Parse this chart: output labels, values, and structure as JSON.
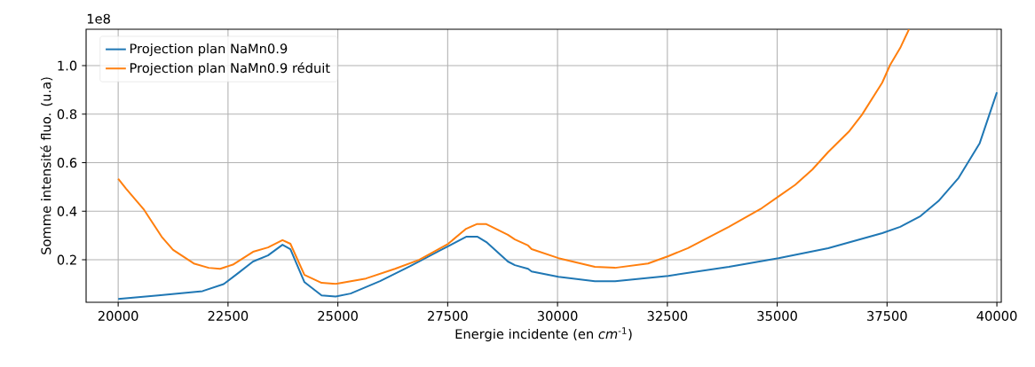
{
  "chart_data": {
    "type": "line",
    "xlabel": "Energie incidente (en *cm*$^{-1}$)",
    "ylabel": "Somme intensité fluo. (u.a)",
    "annotations": [
      "1e8"
    ],
    "xlim": [
      19270,
      40100
    ],
    "ylim": [
      0.025,
      1.15
    ],
    "xticks": [
      20000,
      22500,
      25000,
      27500,
      30000,
      32500,
      35000,
      37500,
      40000
    ],
    "yticks": [
      0.2,
      0.4,
      0.6,
      0.8,
      {
        "value": 1.0,
        "label": "1.0"
      }
    ],
    "grid": true,
    "legend": "top left",
    "series": [
      {
        "name": "Projection plan NaMn0.9",
        "color": "#1f77b4",
        "x": [
          20000,
          20910,
          21920,
          22400,
          22730,
          23070,
          23410,
          23740,
          23920,
          24240,
          24630,
          24950,
          25290,
          25960,
          26650,
          27310,
          27920,
          28180,
          28380,
          28870,
          29030,
          29330,
          29410,
          30020,
          30850,
          31310,
          32520,
          33900,
          35030,
          36160,
          37390,
          37800,
          38260,
          38670,
          39130,
          39610,
          40000
        ],
        "values": [
          0.039,
          0.053,
          0.071,
          0.1,
          0.145,
          0.193,
          0.218,
          0.262,
          0.244,
          0.108,
          0.053,
          0.049,
          0.061,
          0.112,
          0.174,
          0.237,
          0.295,
          0.295,
          0.273,
          0.193,
          0.178,
          0.163,
          0.152,
          0.13,
          0.112,
          0.112,
          0.134,
          0.171,
          0.207,
          0.248,
          0.31,
          0.336,
          0.38,
          0.442,
          0.538,
          0.681,
          0.89
        ]
      },
      {
        "name": "Projection plan NaMn0.9 réduit",
        "color": "#ff7f0e",
        "x": [
          20000,
          20180,
          20590,
          20990,
          21250,
          21720,
          22060,
          22320,
          22610,
          23070,
          23410,
          23740,
          23920,
          24240,
          24630,
          24950,
          25640,
          26300,
          26850,
          27510,
          27920,
          28160,
          28380,
          28870,
          29030,
          29330,
          29410,
          30020,
          30850,
          31310,
          32060,
          32520,
          32970,
          33900,
          34650,
          35030,
          35410,
          35800,
          36160,
          36630,
          36930,
          37390,
          37570,
          37800,
          38000
        ],
        "values": [
          0.534,
          0.493,
          0.406,
          0.295,
          0.241,
          0.185,
          0.167,
          0.163,
          0.18,
          0.233,
          0.251,
          0.281,
          0.266,
          0.138,
          0.105,
          0.101,
          0.123,
          0.163,
          0.2,
          0.266,
          0.328,
          0.347,
          0.347,
          0.303,
          0.284,
          0.259,
          0.244,
          0.207,
          0.171,
          0.167,
          0.185,
          0.215,
          0.248,
          0.336,
          0.413,
          0.461,
          0.509,
          0.572,
          0.644,
          0.728,
          0.798,
          0.93,
          1.003,
          1.073,
          1.15
        ]
      }
    ]
  }
}
